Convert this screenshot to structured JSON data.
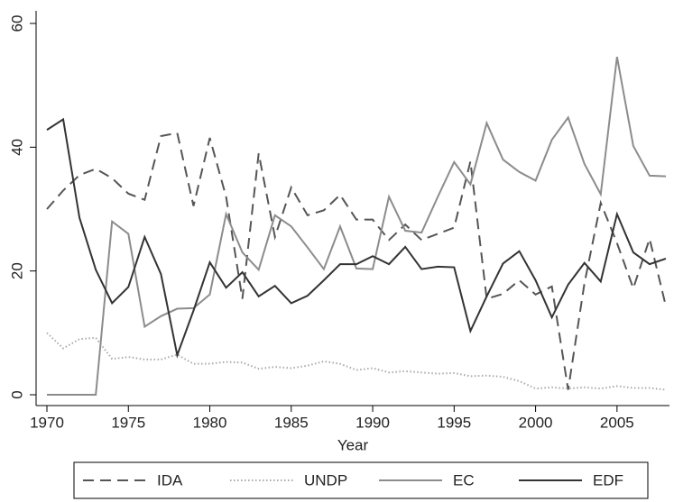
{
  "chart_data": {
    "type": "line",
    "x_label": "Year",
    "x": [
      1970,
      1971,
      1972,
      1973,
      1974,
      1975,
      1976,
      1977,
      1978,
      1979,
      1980,
      1981,
      1982,
      1983,
      1984,
      1985,
      1986,
      1987,
      1988,
      1989,
      1990,
      1991,
      1992,
      1993,
      1994,
      1995,
      1996,
      1997,
      1998,
      1999,
      2000,
      2001,
      2002,
      2003,
      2004,
      2005,
      2006,
      2007,
      2008
    ],
    "series": [
      {
        "name": "IDA",
        "color": "#555555",
        "style": "dashed",
        "values": [
          30,
          33,
          35.5,
          36.5,
          35,
          32.5,
          31.5,
          41.8,
          42.3,
          30.5,
          41.5,
          32,
          15.5,
          39,
          25.5,
          33.5,
          29,
          29.8,
          32.3,
          28.3,
          28.3,
          25,
          27.5,
          25,
          26,
          27,
          37.7,
          15.5,
          16.3,
          18.5,
          16.2,
          17.5,
          0.8,
          18,
          31,
          24.5,
          17.2,
          25.2,
          14.3
        ]
      },
      {
        "name": "UNDP",
        "color": "#aaaaaa",
        "style": "dotted",
        "values": [
          10,
          7.5,
          9,
          9.2,
          5.8,
          6.1,
          5.7,
          5.7,
          6.5,
          5,
          5,
          5.3,
          5.2,
          4.2,
          4.5,
          4.3,
          4.7,
          5.4,
          5,
          4,
          4.3,
          3.6,
          3.8,
          3.6,
          3.4,
          3.5,
          3,
          3.1,
          2.9,
          2.2,
          1,
          1.2,
          1,
          1.2,
          1,
          1.4,
          1.1,
          1.1,
          0.8
        ]
      },
      {
        "name": "EC",
        "color": "#8c8c8c",
        "style": "solid",
        "values": [
          0,
          0,
          0,
          0,
          28,
          26,
          11,
          12.7,
          13.9,
          14,
          16.2,
          29.2,
          23,
          20.2,
          29,
          27.2,
          23.8,
          20.3,
          27.2,
          20.4,
          20.3,
          32,
          26.5,
          26.2,
          32,
          37.6,
          34,
          43.9,
          38,
          36,
          34.6,
          41.2,
          44.8,
          37.3,
          32.4,
          54.6,
          40.2,
          35.4,
          35.3
        ]
      },
      {
        "name": "EDF",
        "color": "#333333",
        "style": "solid",
        "values": [
          42.8,
          44.5,
          28.6,
          20.2,
          14.8,
          17.4,
          25.5,
          19.5,
          6.4,
          13.6,
          21.4,
          17.3,
          19.8,
          15.9,
          17.6,
          14.8,
          16,
          18.5,
          21.1,
          21.1,
          22.4,
          21.1,
          23.9,
          20.3,
          20.7,
          20.6,
          10.3,
          15.9,
          21.2,
          23.2,
          18.5,
          12.5,
          17.8,
          21.3,
          18.3,
          29.2,
          23,
          21.1,
          22
        ]
      }
    ],
    "xlim": [
      1970,
      2008
    ],
    "xticks": [
      1970,
      1975,
      1980,
      1985,
      1990,
      1995,
      2000,
      2005
    ],
    "ylim": [
      0,
      60
    ],
    "yticks": [
      0,
      20,
      40,
      60
    ],
    "grid": false,
    "legend": "bottom"
  }
}
